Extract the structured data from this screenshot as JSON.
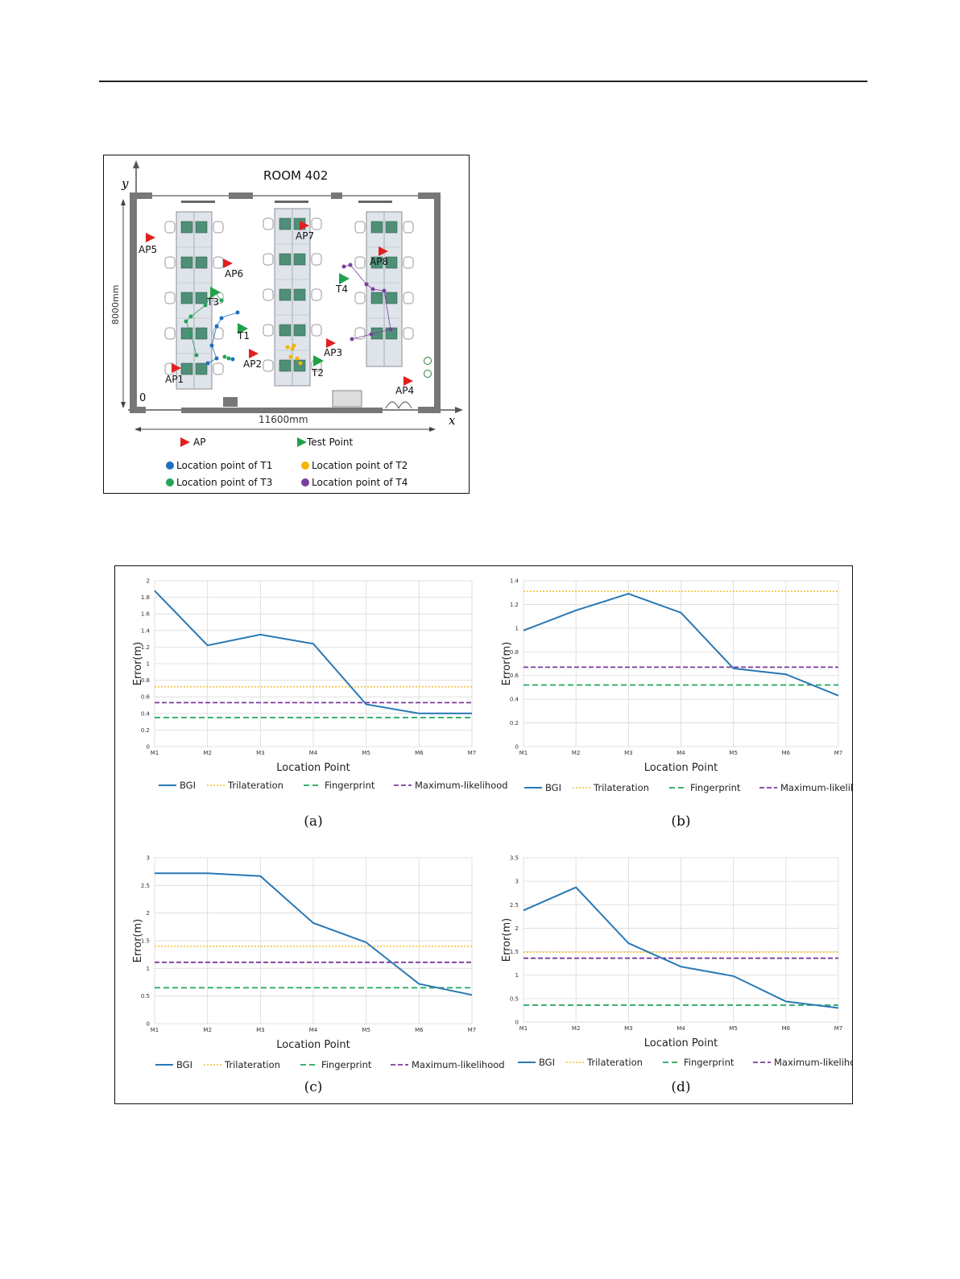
{
  "room": {
    "title": "ROOM 402",
    "y_axis": "y",
    "x_axis": "x",
    "origin": "0",
    "height_dim": "8000mm",
    "width_dim": "11600mm",
    "access_points": [
      "AP1",
      "AP2",
      "AP3",
      "AP4",
      "AP5",
      "AP6",
      "AP7",
      "AP8"
    ],
    "test_points": [
      "T1",
      "T2",
      "T3",
      "T4"
    ],
    "legend": {
      "ap": "AP",
      "test_point": "Test Point",
      "loc_t1": "Location point of T1",
      "loc_t2": "Location point of T2",
      "loc_t3": "Location point of T3",
      "loc_t4": "Location point of T4"
    },
    "colors": {
      "ap": "#e02020",
      "test": "#1fa24a",
      "t1": "#1f6fbf",
      "t2": "#f4b400",
      "t3": "#22a55a",
      "t4": "#7b3fa0"
    }
  },
  "legend_labels": {
    "bgi": "BGI",
    "tri": "Trilateration",
    "fp": "Fingerprint",
    "ml": "Maximum-likelihood"
  },
  "series_colors": {
    "bgi": "#2878b5",
    "tri": "#f2c12e",
    "fp": "#1fa85a",
    "ml": "#7a3b9c"
  },
  "chart_data": [
    {
      "type": "line",
      "caption": "(a)",
      "categories": [
        "M1",
        "M2",
        "M3",
        "M4",
        "M5",
        "M6",
        "M7"
      ],
      "ylabel": "Error(m)",
      "xlabel": "Location Point",
      "ylim": [
        0,
        2
      ],
      "yticks": [
        "0",
        "0.2",
        "0.4",
        "0.6",
        "0.8",
        "1",
        "1.2",
        "1.4",
        "1.6",
        "1.8",
        "2"
      ],
      "series": [
        {
          "name": "BGI",
          "values": [
            1.88,
            1.22,
            1.35,
            1.24,
            0.51,
            0.4,
            0.4
          ]
        },
        {
          "name": "Trilateration",
          "values": [
            0.72,
            0.72,
            0.72,
            0.72,
            0.72,
            0.72,
            0.72
          ]
        },
        {
          "name": "Fingerprint",
          "values": [
            0.35,
            0.35,
            0.35,
            0.35,
            0.35,
            0.35,
            0.35
          ]
        },
        {
          "name": "Maximum-likelihood",
          "values": [
            0.53,
            0.53,
            0.53,
            0.53,
            0.53,
            0.53,
            0.53
          ]
        }
      ]
    },
    {
      "type": "line",
      "caption": "(b)",
      "categories": [
        "M1",
        "M2",
        "M3",
        "M4",
        "M5",
        "M6",
        "M7"
      ],
      "ylabel": "Error(m)",
      "xlabel": "Location Point",
      "ylim": [
        0,
        1.4
      ],
      "yticks": [
        "0",
        "0.2",
        "0.4",
        "0.6",
        "0.8",
        "1",
        "1.2",
        "1.4"
      ],
      "series": [
        {
          "name": "BGI",
          "values": [
            0.98,
            1.15,
            1.29,
            1.13,
            0.66,
            0.61,
            0.43
          ]
        },
        {
          "name": "Trilateration",
          "values": [
            1.31,
            1.31,
            1.31,
            1.31,
            1.31,
            1.31,
            1.31
          ]
        },
        {
          "name": "Fingerprint",
          "values": [
            0.52,
            0.52,
            0.52,
            0.52,
            0.52,
            0.52,
            0.52
          ]
        },
        {
          "name": "Maximum-likelihood",
          "values": [
            0.67,
            0.67,
            0.67,
            0.67,
            0.67,
            0.67,
            0.67
          ]
        }
      ]
    },
    {
      "type": "line",
      "caption": "(c)",
      "categories": [
        "M1",
        "M2",
        "M3",
        "M4",
        "M5",
        "M6",
        "M7"
      ],
      "ylabel": "Error(m)",
      "xlabel": "Location Point",
      "ylim": [
        0,
        3
      ],
      "yticks": [
        "0",
        "0.5",
        "1",
        "1.5",
        "2",
        "2.5",
        "3"
      ],
      "series": [
        {
          "name": "BGI",
          "values": [
            2.72,
            2.72,
            2.67,
            1.82,
            1.47,
            0.72,
            0.52
          ]
        },
        {
          "name": "Trilateration",
          "values": [
            1.4,
            1.4,
            1.4,
            1.4,
            1.4,
            1.4,
            1.4
          ]
        },
        {
          "name": "Fingerprint",
          "values": [
            0.65,
            0.65,
            0.65,
            0.65,
            0.65,
            0.65,
            0.65
          ]
        },
        {
          "name": "Maximum-likelihood",
          "values": [
            1.11,
            1.11,
            1.11,
            1.11,
            1.11,
            1.11,
            1.11
          ]
        }
      ]
    },
    {
      "type": "line",
      "caption": "(d)",
      "categories": [
        "M1",
        "M2",
        "M3",
        "M4",
        "M5",
        "M6",
        "M7"
      ],
      "ylabel": "Error(m)",
      "xlabel": "Location Point",
      "ylim": [
        0,
        3.5
      ],
      "yticks": [
        "0",
        "0.5",
        "1",
        "1.5",
        "2",
        "2.5",
        "3",
        "3.5"
      ],
      "series": [
        {
          "name": "BGI",
          "values": [
            2.38,
            2.87,
            1.68,
            1.18,
            0.98,
            0.44,
            0.3
          ]
        },
        {
          "name": "Trilateration",
          "values": [
            1.49,
            1.49,
            1.49,
            1.49,
            1.49,
            1.49,
            1.49
          ]
        },
        {
          "name": "Fingerprint",
          "values": [
            0.36,
            0.36,
            0.36,
            0.36,
            0.36,
            0.36,
            0.36
          ]
        },
        {
          "name": "Maximum-likelihood",
          "values": [
            1.36,
            1.36,
            1.36,
            1.36,
            1.36,
            1.36,
            1.36
          ]
        }
      ]
    }
  ]
}
